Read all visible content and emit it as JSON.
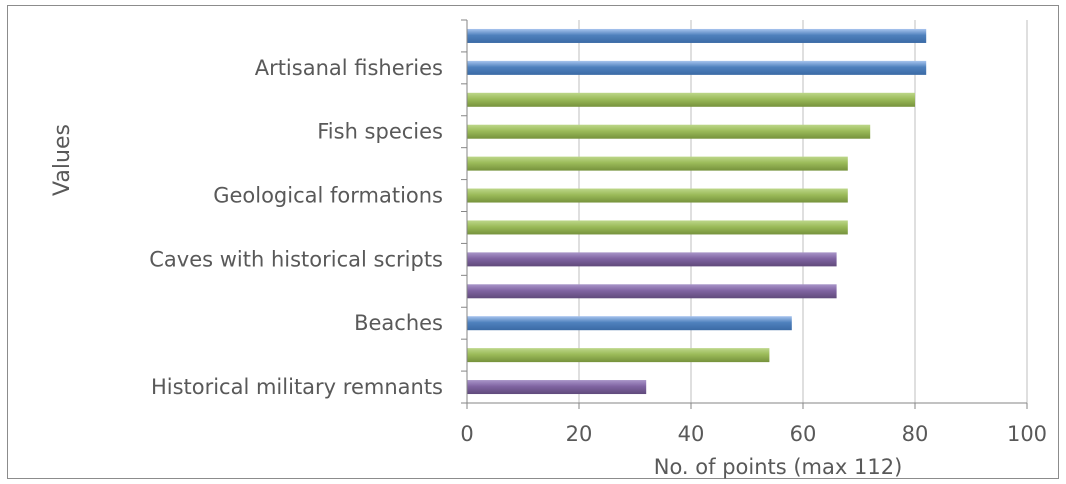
{
  "chart_data": {
    "type": "bar",
    "orientation": "horizontal",
    "ylabel": "Values",
    "xlabel": "No. of points (max 112)",
    "xlim": [
      0,
      100
    ],
    "x_ticks": [
      "0",
      "20",
      "40",
      "60",
      "80",
      "100"
    ],
    "grid": "vertical",
    "legend": "none",
    "categories": [
      "Historical military remnants",
      "",
      "Beaches",
      "",
      "Caves with historical scripts",
      "",
      "Geological formations",
      "",
      "Fish species",
      "",
      "Artisanal fisheries",
      ""
    ],
    "values": [
      32,
      54,
      58,
      66,
      66,
      68,
      68,
      68,
      72,
      80,
      82,
      82
    ],
    "bar_colors": [
      "#8064a2",
      "#9bbb59",
      "#4f81bd",
      "#8064a2",
      "#8064a2",
      "#9bbb59",
      "#9bbb59",
      "#9bbb59",
      "#9bbb59",
      "#9bbb59",
      "#4f81bd",
      "#4f81bd"
    ],
    "palette": {
      "purple": "#8064a2",
      "green": "#9bbb59",
      "blue": "#4f81bd",
      "grid": "#bfbfbf",
      "axis": "#868686",
      "text": "#595959"
    }
  }
}
